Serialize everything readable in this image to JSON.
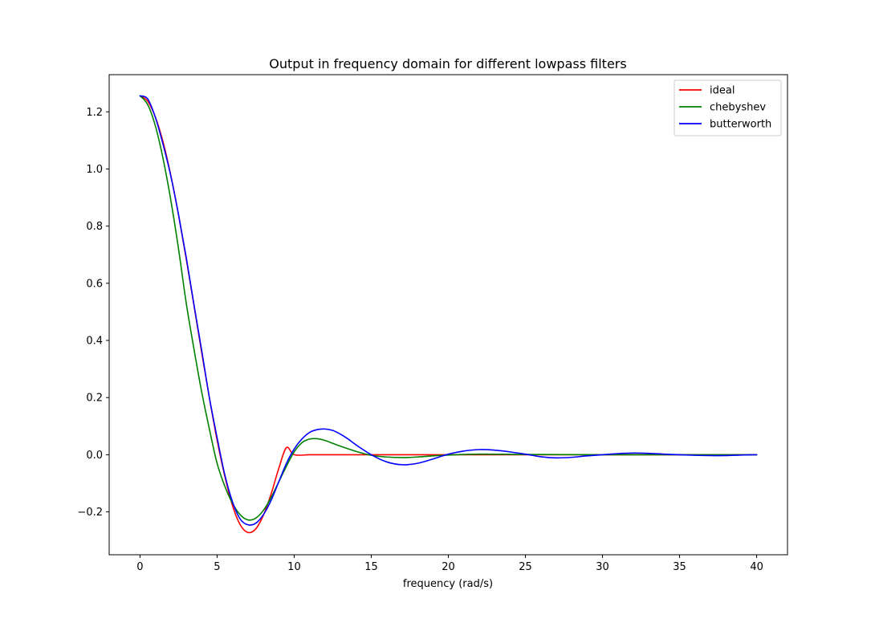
{
  "chart_data": {
    "type": "line",
    "title": "Output in frequency domain for different lowpass filters",
    "xlabel": "frequency (rad/s)",
    "ylabel": "",
    "xlim": [
      -2,
      42
    ],
    "ylim": [
      -0.35,
      1.33
    ],
    "xticks": [
      0,
      5,
      10,
      15,
      20,
      25,
      30,
      35,
      40
    ],
    "xtick_labels": [
      "0",
      "5",
      "10",
      "15",
      "20",
      "25",
      "30",
      "35",
      "40"
    ],
    "yticks": [
      -0.2,
      0.0,
      0.2,
      0.4,
      0.6,
      0.8,
      1.0,
      1.2
    ],
    "ytick_labels": [
      "−0.2",
      "0.0",
      "0.2",
      "0.4",
      "0.6",
      "0.8",
      "1.0",
      "1.2"
    ],
    "grid": false,
    "legend_position": "top-right",
    "series": [
      {
        "name": "ideal",
        "color": "#ff0000",
        "x": [
          0,
          0.5,
          1,
          1.5,
          2,
          2.5,
          3,
          3.5,
          4,
          4.5,
          5,
          5.5,
          6,
          6.5,
          7,
          7.5,
          8,
          8.5,
          9,
          9.5,
          10,
          11,
          12,
          13,
          14,
          15,
          20,
          25,
          30,
          35,
          40
        ],
        "y": [
          1.256,
          1.237,
          1.181,
          1.093,
          0.977,
          0.839,
          0.685,
          0.522,
          0.358,
          0.199,
          0.051,
          -0.075,
          -0.178,
          -0.245,
          -0.272,
          -0.26,
          -0.212,
          -0.138,
          -0.048,
          0.025,
          0.0,
          0.0,
          0.0,
          0.0,
          0.0,
          0.0,
          0.0,
          0.0,
          0.0,
          0.0,
          0.0
        ]
      },
      {
        "name": "chebyshev",
        "color": "#008000",
        "x": [
          0,
          0.5,
          1,
          1.5,
          2,
          2.5,
          3,
          3.5,
          4,
          4.5,
          5,
          5.5,
          6,
          6.5,
          7,
          7.5,
          8,
          8.5,
          9,
          9.5,
          10,
          10.5,
          11,
          11.5,
          12,
          12.5,
          13,
          14,
          15,
          16,
          17,
          18,
          19,
          20,
          22,
          25,
          30,
          35,
          40
        ],
        "y": [
          1.256,
          1.225,
          1.15,
          1.035,
          0.89,
          0.72,
          0.53,
          0.37,
          0.22,
          0.09,
          -0.03,
          -0.11,
          -0.17,
          -0.21,
          -0.228,
          -0.222,
          -0.195,
          -0.15,
          -0.095,
          -0.04,
          0.01,
          0.042,
          0.055,
          0.056,
          0.05,
          0.04,
          0.03,
          0.012,
          -0.002,
          -0.008,
          -0.01,
          -0.008,
          -0.004,
          -0.001,
          0.002,
          0.001,
          0.0,
          0.0,
          0.0
        ]
      },
      {
        "name": "butterworth",
        "color": "#0000ff",
        "x": [
          0,
          0.5,
          1,
          1.5,
          2,
          2.5,
          3,
          3.5,
          4,
          4.5,
          5,
          5.5,
          6,
          6.5,
          7,
          7.5,
          8,
          8.5,
          9,
          9.5,
          10,
          10.5,
          11,
          11.5,
          12,
          12.5,
          13,
          13.5,
          14,
          15,
          16,
          17,
          18,
          19,
          20,
          21,
          22,
          23,
          24,
          25,
          26,
          27,
          28,
          29,
          30,
          31,
          32,
          33,
          34,
          35,
          36,
          37,
          38,
          39,
          40
        ],
        "y": [
          1.256,
          1.245,
          1.18,
          1.085,
          0.975,
          0.84,
          0.69,
          0.525,
          0.365,
          0.2,
          0.06,
          -0.07,
          -0.165,
          -0.225,
          -0.245,
          -0.24,
          -0.21,
          -0.16,
          -0.095,
          -0.03,
          0.02,
          0.055,
          0.078,
          0.088,
          0.09,
          0.085,
          0.072,
          0.055,
          0.035,
          0.0,
          -0.025,
          -0.035,
          -0.03,
          -0.015,
          0.002,
          0.013,
          0.018,
          0.016,
          0.01,
          0.002,
          -0.007,
          -0.011,
          -0.009,
          -0.004,
          0.0,
          0.004,
          0.006,
          0.005,
          0.002,
          0.0,
          -0.002,
          -0.003,
          -0.003,
          -0.001,
          0.0
        ]
      }
    ]
  }
}
